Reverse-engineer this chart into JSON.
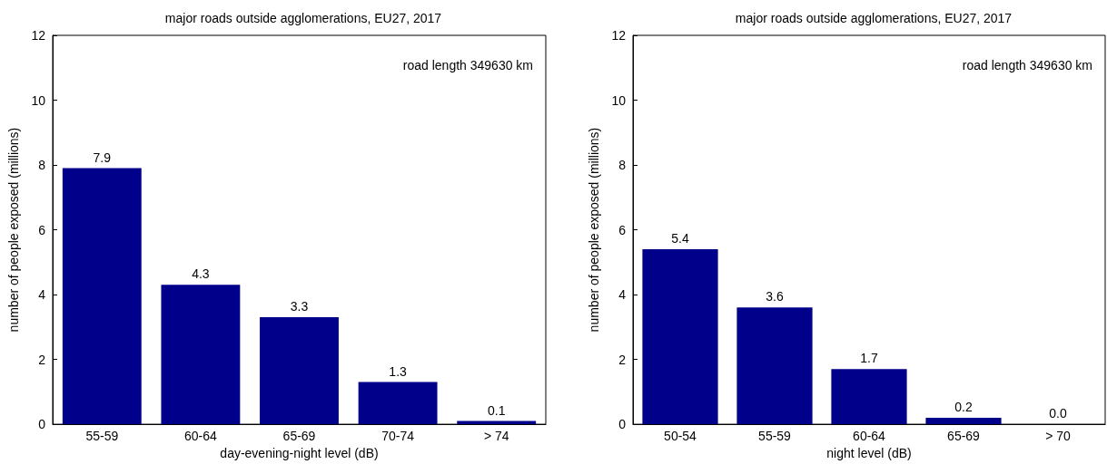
{
  "chart_data": [
    {
      "type": "bar",
      "title": "major roads outside agglomerations, EU27, 2017",
      "xlabel": "day-evening-night level (dB)",
      "ylabel": "number of people exposed (millions)",
      "categories": [
        "55-59",
        "60-64",
        "65-69",
        "70-74",
        "> 74"
      ],
      "values": [
        7.9,
        4.3,
        3.3,
        1.3,
        0.1
      ],
      "color": "#00008b",
      "ylim": [
        0,
        12
      ],
      "yticks": [
        0,
        2,
        4,
        6,
        8,
        10,
        12
      ],
      "data_labels": true,
      "annotations": [
        "road length 349630 km"
      ]
    },
    {
      "type": "bar",
      "title": "major roads outside agglomerations, EU27, 2017",
      "xlabel": "night level (dB)",
      "ylabel": "number of people exposed (millions)",
      "categories": [
        "50-54",
        "55-59",
        "60-64",
        "65-69",
        "> 70"
      ],
      "values": [
        5.4,
        3.6,
        1.7,
        0.2,
        0.0
      ],
      "value_labels": [
        "5.4",
        "3.6",
        "1.7",
        "0.2",
        "0.0"
      ],
      "color": "#00008b",
      "ylim": [
        0,
        12
      ],
      "yticks": [
        0,
        2,
        4,
        6,
        8,
        10,
        12
      ],
      "annotations": [
        "road length 349630 km"
      ]
    }
  ]
}
